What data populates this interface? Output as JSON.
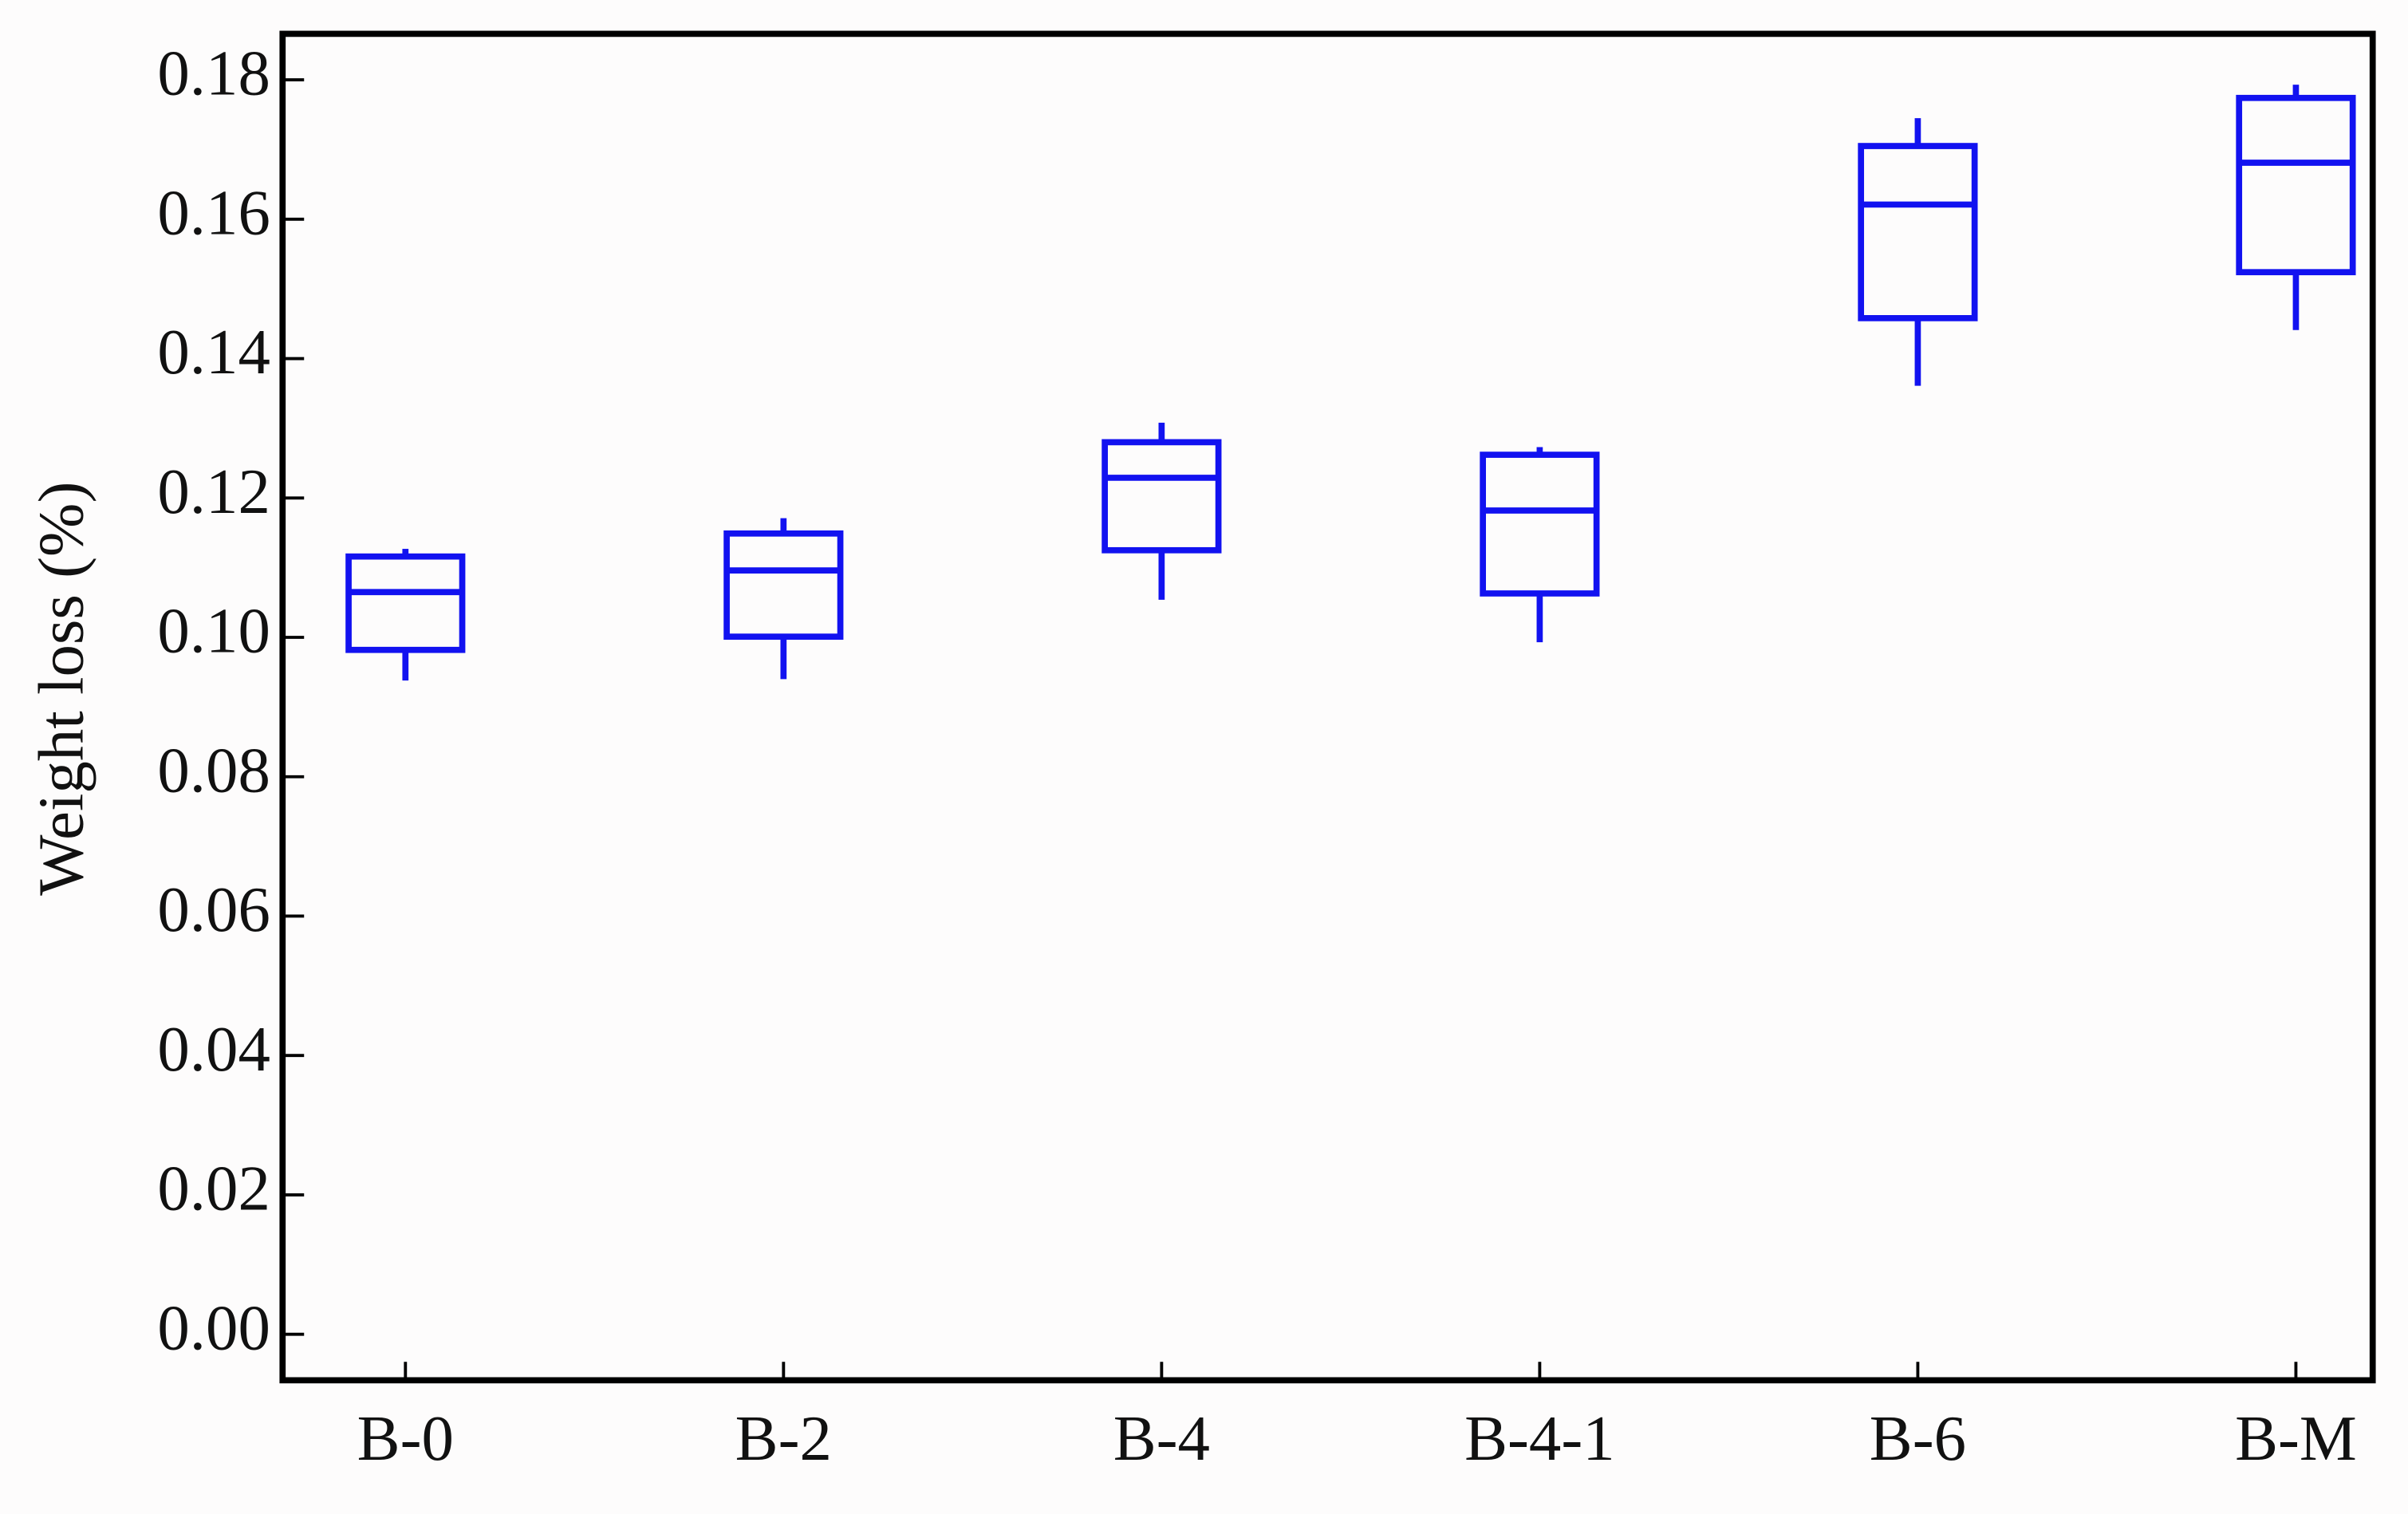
{
  "chart_data": {
    "type": "box",
    "ylabel": "Weight loss (%)",
    "categories": [
      "B-0",
      "B-2",
      "B-4",
      "B-4-1",
      "B-6",
      "B-M"
    ],
    "color": "#1212f0",
    "whisker_high": [
      0.1127,
      0.1171,
      0.1308,
      0.1273,
      0.1745,
      0.1793
    ],
    "q3": [
      0.1116,
      0.1149,
      0.128,
      0.1262,
      0.1705,
      0.1774
    ],
    "median": [
      0.1065,
      0.1096,
      0.1229,
      0.1182,
      0.1621,
      0.1681
    ],
    "q1": [
      0.0982,
      0.1001,
      0.1125,
      0.1063,
      0.1458,
      0.1524
    ],
    "whisker_low": [
      0.0938,
      0.094,
      0.1054,
      0.0993,
      0.1361,
      0.1441
    ],
    "ylim": [
      -0.0066,
      0.1866
    ],
    "yticks": [
      {
        "value": 0,
        "label": "0.00"
      },
      {
        "value": 0.02,
        "label": "0.02"
      },
      {
        "value": 0.04,
        "label": "0.04"
      },
      {
        "value": 0.06,
        "label": "0.06"
      },
      {
        "value": 0.08,
        "label": "0.08"
      },
      {
        "value": 0.1,
        "label": "0.10"
      },
      {
        "value": 0.12,
        "label": "0.12"
      },
      {
        "value": 0.14,
        "label": "0.14"
      },
      {
        "value": 0.16,
        "label": "0.16"
      },
      {
        "value": 0.18,
        "label": "0.18"
      }
    ]
  }
}
